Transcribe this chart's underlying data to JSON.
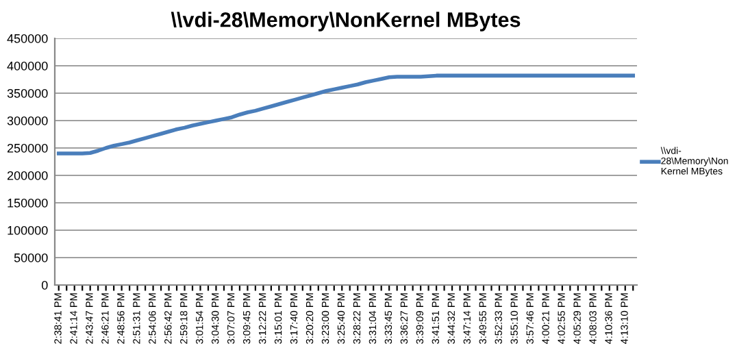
{
  "chart_data": {
    "type": "line",
    "title": "\\\\vdi-28\\Memory\\NonKernel MBytes",
    "categories": [
      "2:38:41 PM",
      null,
      "2:41:14 PM",
      null,
      "2:43:47 PM",
      null,
      "2:46:21 PM",
      null,
      "2:48:56 PM",
      null,
      "2:51:31 PM",
      null,
      "2:54:06 PM",
      null,
      "2:56:42 PM",
      null,
      "2:59:18 PM",
      null,
      "3:01:54 PM",
      null,
      "3:04:30 PM",
      null,
      "3:07:07 PM",
      null,
      "3:09:45 PM",
      null,
      "3:12:22 PM",
      null,
      "3:15:01 PM",
      null,
      "3:17:40 PM",
      null,
      "3:20:20 PM",
      null,
      "3:23:00 PM",
      null,
      "3:25:40 PM",
      null,
      "3:28:22 PM",
      null,
      "3:31:04 PM",
      null,
      "3:33:45 PM",
      null,
      "3:36:27 PM",
      null,
      "3:39:09 PM",
      null,
      "3:41:51 PM",
      null,
      "3:44:32 PM",
      null,
      "3:47:14 PM",
      null,
      "3:49:55 PM",
      null,
      "3:52:33 PM",
      null,
      "3:55:10 PM",
      null,
      "3:57:46 PM",
      null,
      "4:00:21 PM",
      null,
      "4:02:55 PM",
      null,
      "4:05:29 PM",
      null,
      "4:08:03 PM",
      null,
      "4:10:36 PM",
      null,
      "4:13:10 PM",
      null
    ],
    "series": [
      {
        "name": "\\\\vdi-28\\Memory\\NonKernel MBytes",
        "color": "#4a7ebb",
        "values": [
          240000,
          240000,
          240000,
          240000,
          241000,
          245000,
          250000,
          254000,
          257000,
          260000,
          264000,
          268000,
          272000,
          276000,
          280000,
          284000,
          287000,
          291000,
          294000,
          297000,
          300000,
          303000,
          306000,
          311000,
          315000,
          318000,
          322000,
          326000,
          330000,
          334000,
          338000,
          342000,
          346000,
          350000,
          354000,
          357000,
          360000,
          363000,
          366000,
          370000,
          373000,
          376000,
          379000,
          380000,
          380000,
          380000,
          380000,
          381000,
          382000,
          382000,
          382000,
          382000,
          382000,
          382000,
          382000,
          382000,
          382000,
          382000,
          382000,
          382000,
          382000,
          382000,
          382000,
          382000,
          382000,
          382000,
          382000,
          382000,
          382000,
          382000,
          382000,
          382000,
          382000,
          382000
        ]
      }
    ],
    "ylim": [
      0,
      450000
    ],
    "yticks": [
      0,
      50000,
      100000,
      150000,
      200000,
      250000,
      300000,
      350000,
      400000,
      450000
    ],
    "grid": "y",
    "legend": "right",
    "marker": "none",
    "line_style": "solid"
  }
}
